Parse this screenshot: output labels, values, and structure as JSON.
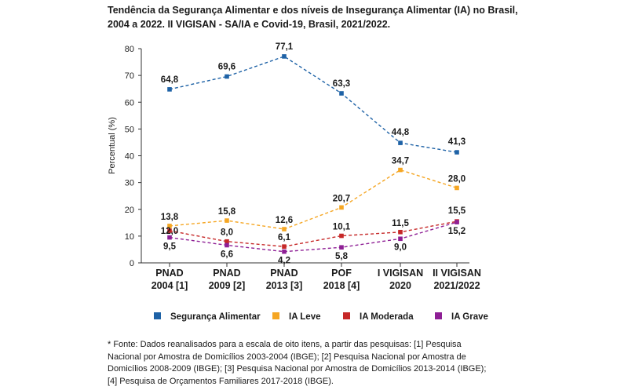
{
  "title_lines": [
    "Tendência da Segurança Alimentar e dos níveis de Insegurança Alimentar (IA) no Brasil,",
    "2004 a 2022. II VIGISAN - SA/IA e Covid-19, Brasil, 2021/2022."
  ],
  "footnote": "* Fonte: Dados reanalisados para a escala de oito itens, a partir das pesquisas: [1] Pesquisa Nacional por Amostra de Domicílios 2003-2004 (IBGE); [2] Pesquisa Nacional por Amostra de Domicílios 2008-2009 (IBGE); [3] Pesquisa Nacional por Amostra de Domicílios 2013-2014 (IBGE); [4] Pesquisa de Orçamentos Familiares 2017-2018 (IBGE).",
  "chart_data": {
    "type": "line",
    "title": "",
    "xlabel": "",
    "ylabel": "Percentual (%)",
    "ylim": [
      0,
      80
    ],
    "yticks": [
      0,
      10,
      20,
      30,
      40,
      50,
      60,
      70,
      80
    ],
    "grid": false,
    "legend_position": "bottom",
    "categories": [
      [
        "PNAD",
        "2004 [1]"
      ],
      [
        "PNAD",
        "2009 [2]"
      ],
      [
        "PNAD",
        "2013 [3]"
      ],
      [
        "POF",
        "2018 [4]"
      ],
      [
        "I VIGISAN",
        "2020"
      ],
      [
        "II VIGISAN",
        "2021/2022"
      ]
    ],
    "series": [
      {
        "name": "Segurança Alimentar",
        "color": "#1e62a6",
        "values": [
          64.8,
          69.6,
          77.1,
          63.3,
          44.8,
          41.3
        ],
        "labels": [
          "64,8",
          "69,6",
          "77,1",
          "63,3",
          "44,8",
          "41,3"
        ]
      },
      {
        "name": "IA Leve",
        "color": "#f5a623",
        "values": [
          13.8,
          15.8,
          12.6,
          20.7,
          34.7,
          28.0
        ],
        "labels": [
          "13,8",
          "15,8",
          "12,6",
          "20,7",
          "34,7",
          "28,0"
        ]
      },
      {
        "name": "IA Moderada",
        "color": "#c62828",
        "values": [
          12.0,
          8.0,
          6.1,
          10.1,
          11.5,
          15.5
        ],
        "labels": [
          "12,0",
          "8,0",
          "6,1",
          "10,1",
          "11,5",
          "15,5"
        ]
      },
      {
        "name": "IA Grave",
        "color": "#8e1f95",
        "values": [
          9.5,
          6.6,
          4.2,
          5.8,
          9.0,
          15.2
        ],
        "labels": [
          "9,5",
          "6,6",
          "4,2",
          "5,8",
          "9,0",
          "15,2"
        ]
      }
    ]
  }
}
